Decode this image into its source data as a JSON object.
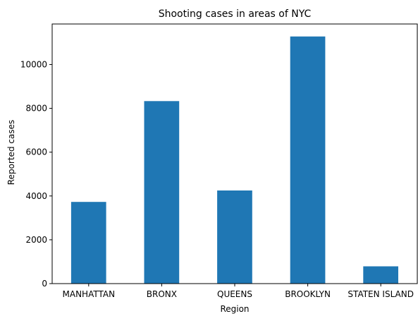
{
  "chart_data": {
    "type": "bar",
    "title": "Shooting cases in areas of NYC",
    "xlabel": "Region",
    "ylabel": "Reported cases",
    "categories": [
      "MANHATTAN",
      "BRONX",
      "QUEENS",
      "BROOKLYN",
      "STATEN ISLAND"
    ],
    "values": [
      3730,
      8330,
      4250,
      11280,
      790
    ],
    "ylim": [
      0,
      11850
    ],
    "yticks": [
      0,
      2000,
      4000,
      6000,
      8000,
      10000
    ],
    "bar_color": "#1f77b4",
    "grid": false,
    "legend": "none"
  }
}
